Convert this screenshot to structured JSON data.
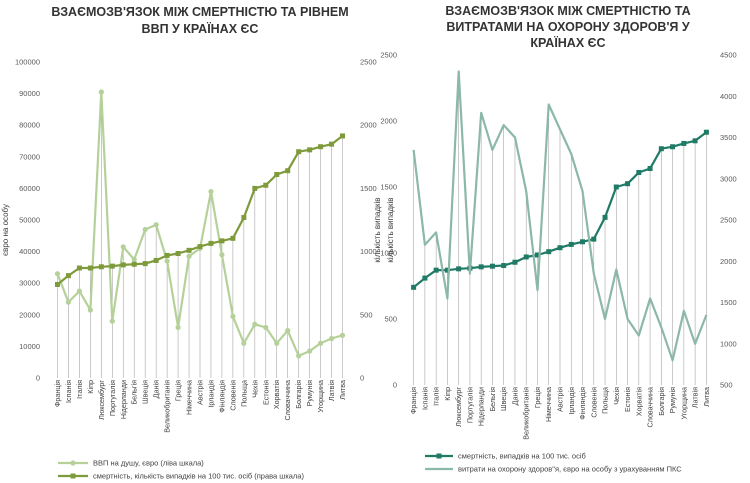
{
  "chart_data": [
    {
      "type": "line",
      "title": [
        "ВЗАЄМОЗВ'ЯЗОК МІЖ СМЕРТНІСТЮ ТА РІВНЕМ",
        "ВВП У КРАЇНАХ ЄС"
      ],
      "ylabel_left": "євро на особу",
      "ylabel_right": "кількість випадків",
      "ylim_left": [
        0,
        100000
      ],
      "yticks_left": [
        "0",
        "10000",
        "20000",
        "30000",
        "40000",
        "50000",
        "60000",
        "70000",
        "80000",
        "90000",
        "100000"
      ],
      "ylim_right": [
        0,
        2500
      ],
      "yticks_right": [
        "0",
        "500",
        "1000",
        "1500",
        "2000",
        "2500"
      ],
      "categories": [
        "Франція",
        "Іспанія",
        "Італія",
        "Кіпр",
        "Люксембург",
        "Португалія",
        "Нідерланди",
        "Бельгія",
        "Швеція",
        "Данія",
        "Великобританія",
        "Греція",
        "Німеччина",
        "Австрія",
        "Ірландія",
        "Фінляндія",
        "Словенія",
        "Польща",
        "Чехія",
        "Естонія",
        "Хорватія",
        "Словаччина",
        "Болгарія",
        "Румунія",
        "Угорщина",
        "Латвія",
        "Литва"
      ],
      "series": [
        {
          "name": "ВВП  на душу, євро (ліва шкала)",
          "axis": "left",
          "color": "#b5d199",
          "marker": "circle",
          "values": [
            33000,
            24000,
            27500,
            21500,
            90500,
            18000,
            41500,
            37500,
            47000,
            48500,
            37000,
            16000,
            38500,
            41000,
            59000,
            39000,
            19500,
            11000,
            17000,
            16000,
            11000,
            15000,
            7000,
            8500,
            11000,
            12500,
            13500
          ]
        },
        {
          "name": "смертність, кількість випадків на 100 тис. осіб (права шкала)",
          "axis": "right",
          "color": "#7f9a3a",
          "marker": "square",
          "values": [
            740,
            810,
            870,
            870,
            880,
            885,
            895,
            900,
            905,
            930,
            970,
            985,
            1010,
            1040,
            1065,
            1085,
            1105,
            1270,
            1500,
            1525,
            1610,
            1640,
            1790,
            1805,
            1830,
            1850,
            1915
          ]
        }
      ],
      "legend": "bottom",
      "grid": false,
      "drop_lines": true
    },
    {
      "type": "line",
      "title": [
        "ВЗАЄМОЗВ'ЯЗОК МІЖ СМЕРТНІСТЮ ТА",
        "ВИТРАТАМИ НА ОХОРОНУ ЗДОРОВ'Я У",
        "КРАЇНАХ ЄС"
      ],
      "ylabel_left": "кількість випадків",
      "ylim_left": [
        0,
        2500
      ],
      "yticks_left": [
        "0",
        "500",
        "1000",
        "1500",
        "2000",
        "2500"
      ],
      "ylim_right": [
        500,
        4500
      ],
      "yticks_right": [
        "500",
        "1000",
        "1500",
        "2000",
        "2500",
        "3000",
        "3500",
        "4000",
        "4500"
      ],
      "categories": [
        "Франція",
        "Іспанія",
        "Італія",
        "Кіпр",
        "Люксембург",
        "Португалія",
        "Нідерланди",
        "Бельгія",
        "Швеція",
        "Данія",
        "Великобританія",
        "Греція",
        "Німеччина",
        "Австрія",
        "Ірландія",
        "Фінляндія",
        "Словенія",
        "Польща",
        "Чехія",
        "Естонія",
        "Хорватія",
        "Словаччина",
        "Болгарія",
        "Румунія",
        "Угорщина",
        "Латвія",
        "Литва"
      ],
      "series": [
        {
          "name": "смертність, випадків на 100 тис. осіб",
          "axis": "left",
          "color": "#1f7a66",
          "marker": "square",
          "values": [
            740,
            810,
            870,
            870,
            880,
            885,
            895,
            900,
            905,
            930,
            970,
            985,
            1010,
            1040,
            1065,
            1085,
            1105,
            1270,
            1500,
            1525,
            1610,
            1640,
            1790,
            1805,
            1830,
            1850,
            1915
          ]
        },
        {
          "name": "витрати на охорону здоров\"я, євро на особу з урахуванням ПКС",
          "axis": "right",
          "color": "#8cb8a8",
          "marker": "none",
          "values": [
            3350,
            2200,
            2350,
            1550,
            4300,
            1850,
            3800,
            3350,
            3650,
            3500,
            2850,
            1650,
            3900,
            3600,
            3300,
            2850,
            1850,
            1300,
            1900,
            1300,
            1100,
            1550,
            1200,
            800,
            1400,
            1000,
            1350
          ]
        }
      ],
      "legend": "bottom",
      "grid": false,
      "drop_lines": true
    }
  ]
}
